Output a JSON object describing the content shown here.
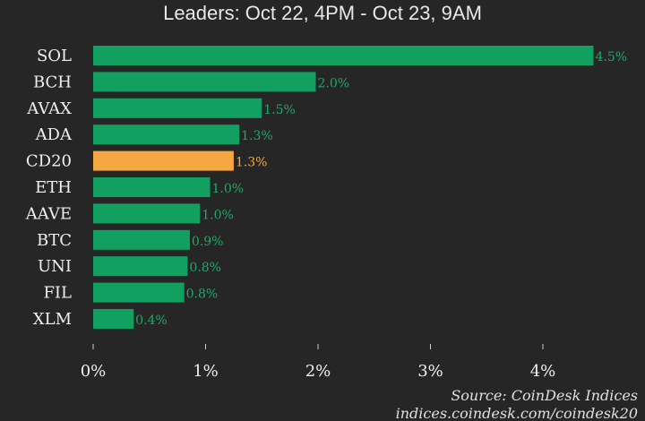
{
  "chart_data": {
    "type": "bar",
    "orientation": "horizontal",
    "subtitle": "Leaders: Oct 22, 4PM - Oct 23, 9AM",
    "categories": [
      "SOL",
      "BCH",
      "AVAX",
      "ADA",
      "CD20",
      "ETH",
      "AAVE",
      "BTC",
      "UNI",
      "FIL",
      "XLM"
    ],
    "values": [
      4.45,
      1.98,
      1.5,
      1.3,
      1.25,
      1.04,
      0.95,
      0.86,
      0.84,
      0.81,
      0.36
    ],
    "data_labels": [
      "4.5%",
      "2.0%",
      "1.5%",
      "1.3%",
      "1.3%",
      "1.0%",
      "1.0%",
      "0.9%",
      "0.8%",
      "0.8%",
      "0.4%"
    ],
    "highlight": "CD20",
    "xlim": [
      0,
      4.6
    ],
    "xticks": [
      0,
      1,
      2,
      3,
      4
    ],
    "xtick_labels": [
      "0%",
      "1%",
      "2%",
      "3%",
      "4%"
    ],
    "grid": false,
    "colors": {
      "bar": "#12a061",
      "highlight": "#f5a742",
      "background": "#262626",
      "label_green": "#1fa869"
    },
    "source": "Source: CoinDesk Indices",
    "source_url": "indices.coindesk.com/coindesk20"
  }
}
